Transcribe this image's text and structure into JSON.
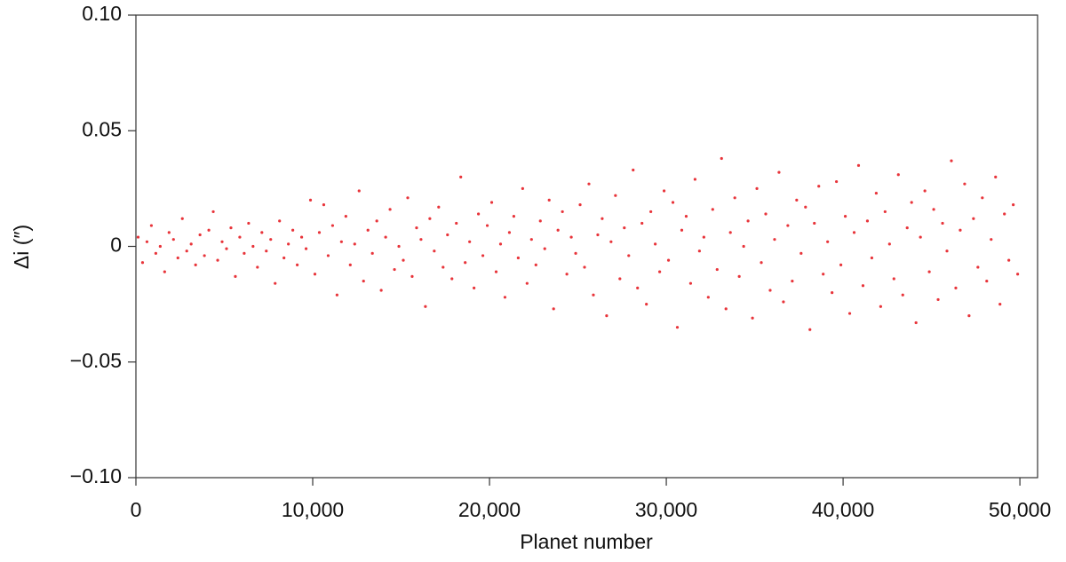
{
  "chart_data": {
    "type": "scatter",
    "x_label": "Planet number",
    "y_label": "Δi (″)",
    "color": "#e8343a",
    "xlim": [
      0,
      51000
    ],
    "ylim": [
      -0.1,
      0.1
    ],
    "xticks": [
      0,
      {
        "value": 10000,
        "label": "10,000"
      },
      {
        "value": 20000,
        "label": "20,000"
      },
      {
        "value": 30000,
        "label": "30,000"
      },
      {
        "value": 40000,
        "label": "40,000"
      },
      {
        "value": 50000,
        "label": "50,000"
      }
    ],
    "yticks": [
      {
        "value": -0.1,
        "label": "−0.10"
      },
      {
        "value": -0.05,
        "label": "−0.05"
      },
      0,
      {
        "value": 0.05,
        "label": "0.05"
      },
      {
        "value": 0.1,
        "label": "0.10"
      }
    ],
    "x": [
      125,
      375,
      625,
      875,
      1125,
      1375,
      1625,
      1875,
      2125,
      2375,
      2625,
      2875,
      3125,
      3375,
      3625,
      3875,
      4125,
      4375,
      4625,
      4875,
      5125,
      5375,
      5625,
      5875,
      6125,
      6375,
      6625,
      6875,
      7125,
      7375,
      7625,
      7875,
      8125,
      8375,
      8625,
      8875,
      9125,
      9375,
      9625,
      9875,
      10125,
      10375,
      10625,
      10875,
      11125,
      11375,
      11625,
      11875,
      12125,
      12375,
      12625,
      12875,
      13125,
      13375,
      13625,
      13875,
      14125,
      14375,
      14625,
      14875,
      15125,
      15375,
      15625,
      15875,
      16125,
      16375,
      16625,
      16875,
      17125,
      17375,
      17625,
      17875,
      18125,
      18375,
      18625,
      18875,
      19125,
      19375,
      19625,
      19875,
      20125,
      20375,
      20625,
      20875,
      21125,
      21375,
      21625,
      21875,
      22125,
      22375,
      22625,
      22875,
      23125,
      23375,
      23625,
      23875,
      24125,
      24375,
      24625,
      24875,
      25125,
      25375,
      25625,
      25875,
      26125,
      26375,
      26625,
      26875,
      27125,
      27375,
      27625,
      27875,
      28125,
      28375,
      28625,
      28875,
      29125,
      29375,
      29625,
      29875,
      30125,
      30375,
      30625,
      30875,
      31125,
      31375,
      31625,
      31875,
      32125,
      32375,
      32625,
      32875,
      33125,
      33375,
      33625,
      33875,
      34125,
      34375,
      34625,
      34875,
      35125,
      35375,
      35625,
      35875,
      36125,
      36375,
      36625,
      36875,
      37125,
      37375,
      37625,
      37875,
      38125,
      38375,
      38625,
      38875,
      39125,
      39375,
      39625,
      39875,
      40125,
      40375,
      40625,
      40875,
      41125,
      41375,
      41625,
      41875,
      42125,
      42375,
      42625,
      42875,
      43125,
      43375,
      43625,
      43875,
      44125,
      44375,
      44625,
      44875,
      45125,
      45375,
      45625,
      45875,
      46125,
      46375,
      46625,
      46875,
      47125,
      47375,
      47625,
      47875,
      48125,
      48375,
      48625,
      48875,
      49125,
      49375,
      49625,
      49875
    ],
    "values": [
      0.004,
      -0.007,
      0.002,
      0.009,
      -0.003,
      0.0,
      -0.011,
      0.006,
      0.003,
      -0.005,
      0.012,
      -0.002,
      0.001,
      -0.008,
      0.005,
      -0.004,
      0.007,
      0.015,
      -0.006,
      0.002,
      -0.001,
      0.008,
      -0.013,
      0.004,
      -0.003,
      0.01,
      0.0,
      -0.009,
      0.006,
      -0.002,
      0.003,
      -0.016,
      0.011,
      -0.005,
      0.001,
      0.007,
      -0.008,
      0.004,
      -0.001,
      0.02,
      -0.012,
      0.006,
      0.018,
      -0.004,
      0.009,
      -0.021,
      0.002,
      0.013,
      -0.008,
      0.001,
      0.024,
      -0.015,
      0.007,
      -0.003,
      0.011,
      -0.019,
      0.004,
      0.016,
      -0.01,
      0.0,
      -0.006,
      0.021,
      -0.013,
      0.008,
      0.003,
      -0.026,
      0.012,
      -0.002,
      0.017,
      -0.009,
      0.005,
      -0.014,
      0.01,
      0.03,
      -0.007,
      0.002,
      -0.018,
      0.014,
      -0.004,
      0.009,
      0.019,
      -0.011,
      0.001,
      -0.022,
      0.006,
      0.013,
      -0.005,
      0.025,
      -0.016,
      0.003,
      -0.008,
      0.011,
      -0.001,
      0.02,
      -0.027,
      0.007,
      0.015,
      -0.012,
      0.004,
      -0.003,
      0.018,
      -0.009,
      0.027,
      -0.021,
      0.005,
      0.012,
      -0.03,
      0.002,
      0.022,
      -0.014,
      0.008,
      -0.004,
      0.033,
      -0.018,
      0.01,
      -0.025,
      0.015,
      0.001,
      -0.011,
      0.024,
      -0.006,
      0.019,
      -0.035,
      0.007,
      0.013,
      -0.016,
      0.029,
      -0.002,
      0.004,
      -0.022,
      0.016,
      -0.01,
      0.038,
      -0.027,
      0.006,
      0.021,
      -0.013,
      0.0,
      0.011,
      -0.031,
      0.025,
      -0.007,
      0.014,
      -0.019,
      0.003,
      0.032,
      -0.024,
      0.009,
      -0.015,
      0.02,
      -0.003,
      0.017,
      -0.036,
      0.01,
      0.026,
      -0.012,
      0.002,
      -0.02,
      0.028,
      -0.008,
      0.013,
      -0.029,
      0.006,
      0.035,
      -0.017,
      0.011,
      -0.005,
      0.023,
      -0.026,
      0.015,
      0.001,
      -0.014,
      0.031,
      -0.021,
      0.008,
      0.019,
      -0.033,
      0.004,
      0.024,
      -0.011,
      0.016,
      -0.023,
      0.01,
      -0.002,
      0.037,
      -0.018,
      0.007,
      0.027,
      -0.03,
      0.012,
      -0.009,
      0.021,
      -0.015,
      0.003,
      0.03,
      -0.025,
      0.014,
      -0.006,
      0.018,
      -0.012
    ]
  }
}
